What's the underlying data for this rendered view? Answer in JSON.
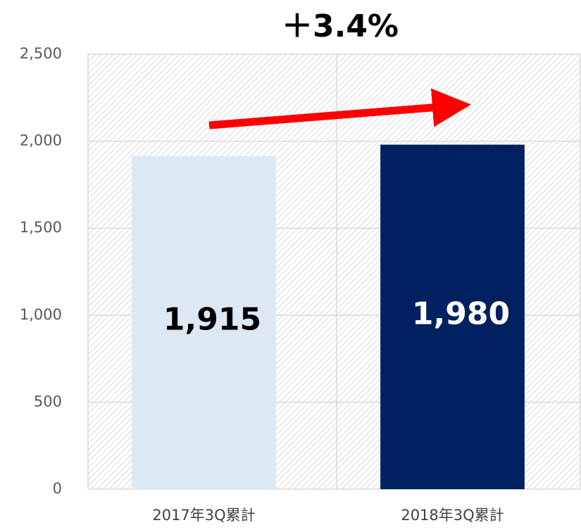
{
  "chart_data": {
    "type": "bar",
    "annotation": "＋3.4%",
    "categories": [
      "2017年3Q累計",
      "2018年3Q累計"
    ],
    "values": [
      1915,
      1980
    ],
    "value_labels": [
      "1,915",
      "1,980"
    ],
    "colors": [
      "#dde8f5",
      "#002060"
    ],
    "ylim": [
      0,
      2500
    ],
    "yticks": [
      0,
      500,
      {
        "value": 1000,
        "label": "1,000"
      },
      {
        "value": 1500,
        "label": "1,500"
      },
      {
        "value": 2000,
        "label": "2,000"
      },
      {
        "value": 2500,
        "label": "2,500"
      }
    ],
    "grid": true
  }
}
